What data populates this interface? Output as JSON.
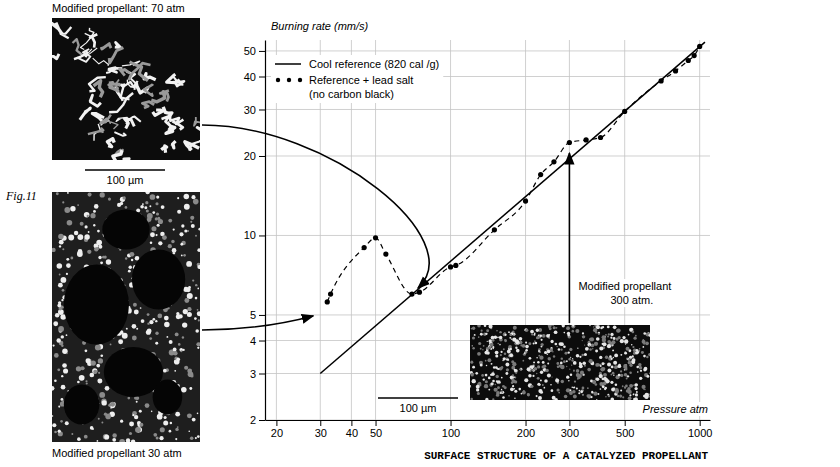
{
  "chart_data": {
    "type": "line",
    "title": "SURFACE STRUCTURE OF A CATALYZED PROPELLANT",
    "figure_label": "Fig.11",
    "x_label": "Pressure atm",
    "y_label": "Burning rate (mm/s)",
    "log": true,
    "grid": true,
    "legend": "upper left",
    "xlim": [
      18,
      1100
    ],
    "xticks": [
      20,
      30,
      40,
      50,
      100,
      200,
      300,
      500,
      1000
    ],
    "ylim": [
      2,
      55
    ],
    "yticks": [
      2,
      3,
      4,
      5,
      10,
      20,
      30,
      40,
      50
    ],
    "series": [
      {
        "name": "Cool reference (820 cal /g)",
        "color": "#000000",
        "line_style": "solid",
        "x": [
          30,
          1050
        ],
        "values": [
          3,
          54
        ]
      },
      {
        "name": "Reference + lead salt (no carbon black)",
        "color": "#000000",
        "line_style": "dashed",
        "marker": "circle",
        "x": [
          32,
          33,
          45,
          50,
          55,
          70,
          75,
          100,
          105,
          150,
          200,
          230,
          260,
          300,
          350,
          400,
          500,
          700,
          800,
          900,
          950,
          1000
        ],
        "values": [
          5.6,
          6.0,
          9.0,
          9.8,
          8.5,
          6.0,
          6.1,
          7.6,
          7.7,
          10.5,
          13.5,
          17,
          19,
          22.5,
          23,
          23.5,
          29.5,
          38.5,
          42,
          46,
          48,
          52
        ]
      }
    ],
    "annotations": [
      {
        "text": "Modified propellant: 70 atm",
        "x": 70,
        "y": 6
      },
      {
        "text": "Modified propellant 30 atm",
        "x": 30,
        "y": 5
      },
      {
        "lines": [
          "Modified propellant",
          "300 atm."
        ],
        "x": 300,
        "y": 22
      }
    ],
    "scale_bars": [
      "100 µm",
      "100 µm"
    ]
  }
}
